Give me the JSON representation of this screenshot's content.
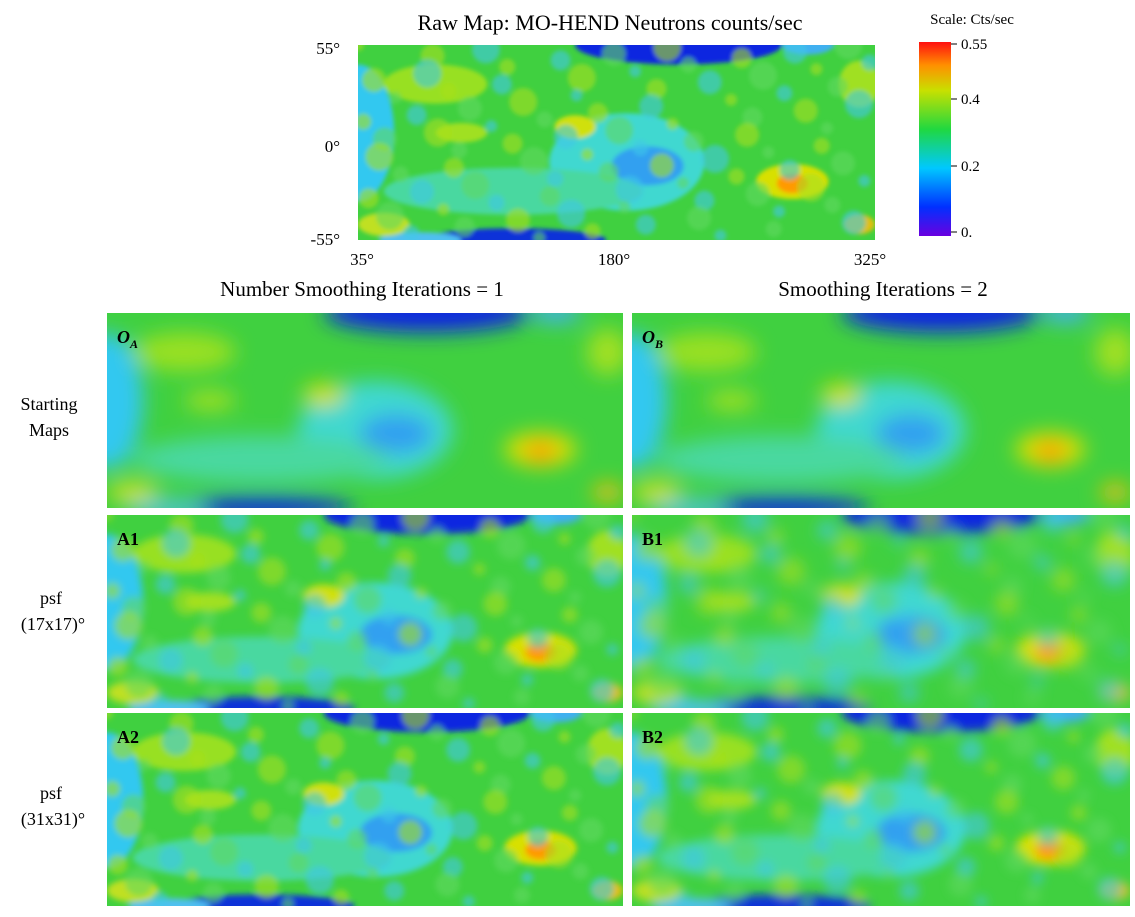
{
  "raw_map": {
    "title": "Raw Map:  MO-HEND Neutrons counts/sec",
    "lat_labels": [
      "55°",
      "0°",
      "-55°"
    ],
    "lon_labels": [
      "35°",
      "180°",
      "325°"
    ]
  },
  "scale": {
    "title": "Scale:  Cts/sec",
    "labels": [
      "0.55",
      "0.4",
      "0.2",
      "0."
    ]
  },
  "columns": [
    "Number Smoothing Iterations = 1",
    "Smoothing Iterations = 2"
  ],
  "rows": [
    {
      "label_lines": [
        "Starting",
        "Maps"
      ]
    },
    {
      "label_lines": [
        "psf",
        "(17x17)°"
      ]
    },
    {
      "label_lines": [
        "psf",
        "(31x31)°"
      ]
    }
  ],
  "panels": [
    {
      "main": "O",
      "sub": "A"
    },
    {
      "main": "O",
      "sub": "B"
    },
    {
      "main": "A1"
    },
    {
      "main": "B1"
    },
    {
      "main": "A2"
    },
    {
      "main": "B2"
    }
  ]
}
